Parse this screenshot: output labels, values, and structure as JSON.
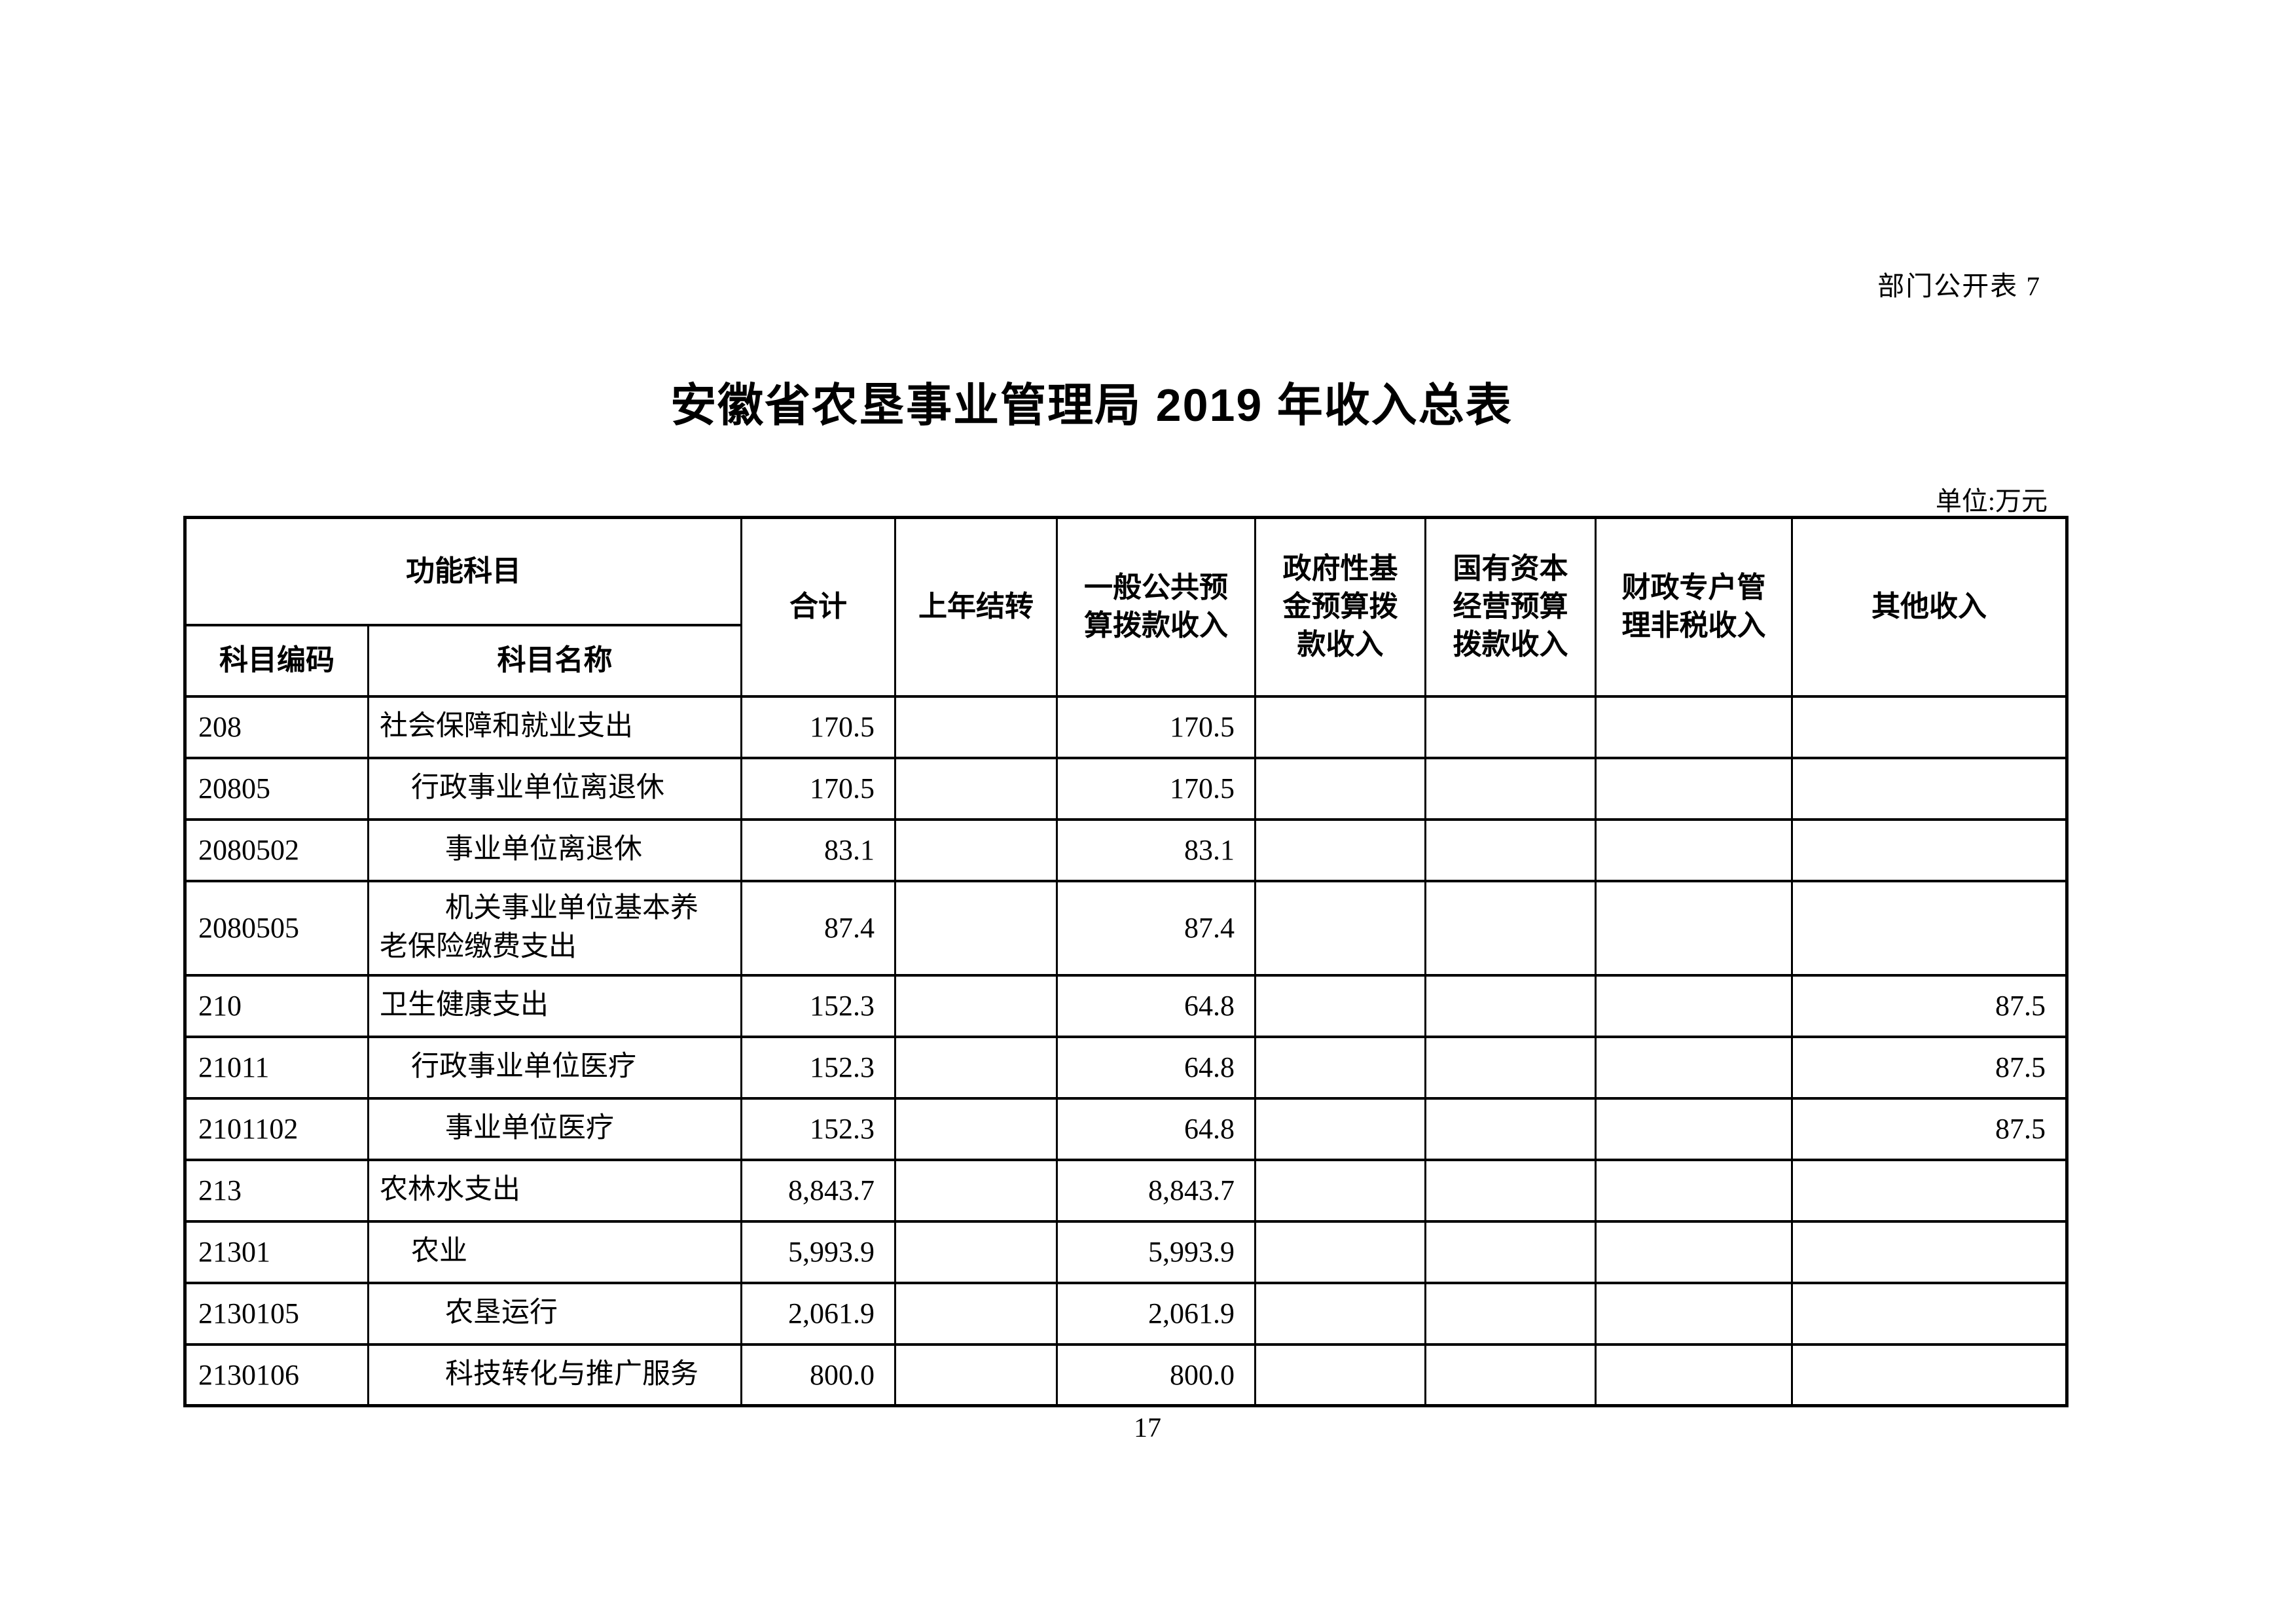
{
  "page": {
    "doc_label": "部门公开表 7",
    "title": "安徽省农垦事业管理局 2019 年收入总表",
    "unit_label": "单位:万元",
    "page_number": "17"
  },
  "table": {
    "header": {
      "function_group": "功能科目",
      "code": "科目编码",
      "name": "科目名称",
      "total": "合计",
      "carryover": "上年结转",
      "general_budget": "一般公共预\n算拨款收入",
      "gov_fund": "政府性基\n金预算拨\n款收入",
      "state_capital": "国有资本\n经营预算\n拨款收入",
      "fiscal_account": "财政专户管\n理非税收入",
      "other_income": "其他收入"
    },
    "rows": [
      {
        "code": "208",
        "name": "社会保障和就业支出",
        "indent": 0,
        "total": "170.5",
        "carryover": "",
        "general": "170.5",
        "gov_fund": "",
        "state_capital": "",
        "fiscal": "",
        "other": ""
      },
      {
        "code": "20805",
        "name": "行政事业单位离退休",
        "indent": 1,
        "total": "170.5",
        "carryover": "",
        "general": "170.5",
        "gov_fund": "",
        "state_capital": "",
        "fiscal": "",
        "other": ""
      },
      {
        "code": "2080502",
        "name": "事业单位离退休",
        "indent": 2,
        "total": "83.1",
        "carryover": "",
        "general": "83.1",
        "gov_fund": "",
        "state_capital": "",
        "fiscal": "",
        "other": ""
      },
      {
        "code": "2080505",
        "name": "机关事业单位基本养老保险缴费支出",
        "indent": 2,
        "total": "87.4",
        "carryover": "",
        "general": "87.4",
        "gov_fund": "",
        "state_capital": "",
        "fiscal": "",
        "other": ""
      },
      {
        "code": "210",
        "name": "卫生健康支出",
        "indent": 0,
        "total": "152.3",
        "carryover": "",
        "general": "64.8",
        "gov_fund": "",
        "state_capital": "",
        "fiscal": "",
        "other": "87.5"
      },
      {
        "code": "21011",
        "name": "行政事业单位医疗",
        "indent": 1,
        "total": "152.3",
        "carryover": "",
        "general": "64.8",
        "gov_fund": "",
        "state_capital": "",
        "fiscal": "",
        "other": "87.5"
      },
      {
        "code": "2101102",
        "name": "事业单位医疗",
        "indent": 2,
        "total": "152.3",
        "carryover": "",
        "general": "64.8",
        "gov_fund": "",
        "state_capital": "",
        "fiscal": "",
        "other": "87.5"
      },
      {
        "code": "213",
        "name": "农林水支出",
        "indent": 0,
        "total": "8,843.7",
        "carryover": "",
        "general": "8,843.7",
        "gov_fund": "",
        "state_capital": "",
        "fiscal": "",
        "other": ""
      },
      {
        "code": "21301",
        "name": "农业",
        "indent": 1,
        "total": "5,993.9",
        "carryover": "",
        "general": "5,993.9",
        "gov_fund": "",
        "state_capital": "",
        "fiscal": "",
        "other": ""
      },
      {
        "code": "2130105",
        "name": "农垦运行",
        "indent": 2,
        "total": "2,061.9",
        "carryover": "",
        "general": "2,061.9",
        "gov_fund": "",
        "state_capital": "",
        "fiscal": "",
        "other": ""
      },
      {
        "code": "2130106",
        "name": "科技转化与推广服务",
        "indent": 2,
        "total": "800.0",
        "carryover": "",
        "general": "800.0",
        "gov_fund": "",
        "state_capital": "",
        "fiscal": "",
        "other": ""
      }
    ]
  }
}
